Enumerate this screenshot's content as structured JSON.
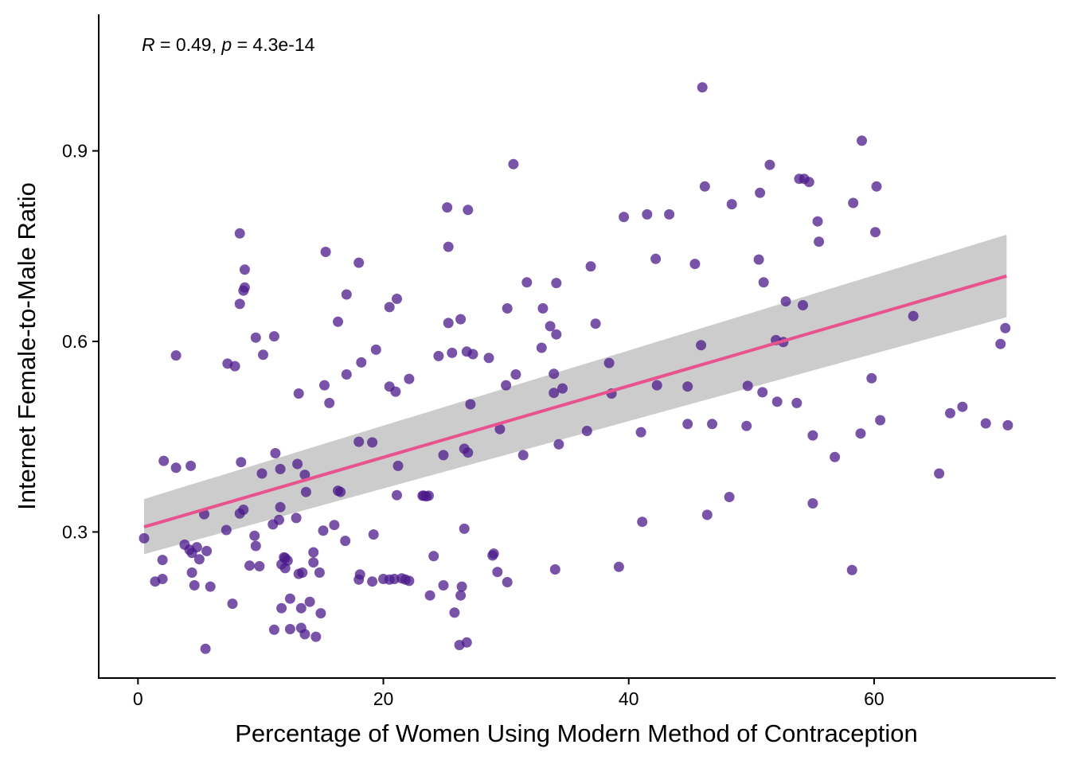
{
  "chart_data": {
    "type": "scatter",
    "xlabel": "Percentage of Women Using Modern Method of Contraception",
    "ylabel": "Internet Female-to-Male Ratio",
    "xlim": [
      -3.2,
      74.8
    ],
    "ylim": [
      0.07,
      1.115
    ],
    "x_ticks": [
      0,
      20,
      40,
      60
    ],
    "x_tick_labels": [
      "0",
      "20",
      "40",
      "60"
    ],
    "y_ticks": [
      0.3,
      0.6,
      0.9
    ],
    "y_tick_labels": [
      "0.3",
      "0.6",
      "0.9"
    ],
    "grid": false,
    "annotation": {
      "r_symbol": "R",
      "r_text": " = 0.49, ",
      "p_symbol": "p",
      "p_text": " = 4.3e-14"
    },
    "regression": {
      "x": [
        0.5,
        70.8
      ],
      "y": [
        0.308,
        0.703
      ],
      "ci_lower": [
        0.265,
        0.638
      ],
      "ci_upper": [
        0.352,
        0.768
      ]
    },
    "colors": {
      "points": "#4B1A8A",
      "regression_line": "#E8528F",
      "confidence_band": "#CCCCCC"
    },
    "points": [
      [
        0.5,
        0.29
      ],
      [
        1.4,
        0.222
      ],
      [
        2.0,
        0.256
      ],
      [
        2.0,
        0.226
      ],
      [
        2.1,
        0.412
      ],
      [
        3.1,
        0.401
      ],
      [
        3.1,
        0.578
      ],
      [
        3.8,
        0.28
      ],
      [
        4.2,
        0.272
      ],
      [
        4.3,
        0.404
      ],
      [
        4.4,
        0.236
      ],
      [
        4.4,
        0.267
      ],
      [
        4.6,
        0.216
      ],
      [
        4.8,
        0.276
      ],
      [
        5.0,
        0.257
      ],
      [
        5.4,
        0.328
      ],
      [
        5.5,
        0.116
      ],
      [
        5.6,
        0.27
      ],
      [
        5.9,
        0.214
      ],
      [
        7.2,
        0.303
      ],
      [
        7.3,
        0.565
      ],
      [
        7.7,
        0.187
      ],
      [
        7.9,
        0.561
      ],
      [
        8.3,
        0.77
      ],
      [
        8.3,
        0.659
      ],
      [
        8.4,
        0.41
      ],
      [
        8.3,
        0.329
      ],
      [
        8.6,
        0.335
      ],
      [
        8.6,
        0.68
      ],
      [
        8.7,
        0.685
      ],
      [
        8.7,
        0.713
      ],
      [
        9.1,
        0.247
      ],
      [
        9.5,
        0.294
      ],
      [
        9.6,
        0.606
      ],
      [
        9.6,
        0.278
      ],
      [
        9.9,
        0.246
      ],
      [
        10.1,
        0.392
      ],
      [
        10.2,
        0.579
      ],
      [
        11.0,
        0.312
      ],
      [
        11.1,
        0.608
      ],
      [
        11.1,
        0.146
      ],
      [
        11.2,
        0.424
      ],
      [
        11.5,
        0.319
      ],
      [
        11.6,
        0.339
      ],
      [
        11.6,
        0.399
      ],
      [
        11.7,
        0.249
      ],
      [
        11.7,
        0.18
      ],
      [
        11.9,
        0.26
      ],
      [
        12.0,
        0.259
      ],
      [
        12.0,
        0.243
      ],
      [
        12.2,
        0.255
      ],
      [
        12.4,
        0.147
      ],
      [
        12.4,
        0.195
      ],
      [
        12.9,
        0.322
      ],
      [
        13.0,
        0.407
      ],
      [
        13.1,
        0.518
      ],
      [
        13.1,
        0.234
      ],
      [
        13.3,
        0.18
      ],
      [
        13.3,
        0.149
      ],
      [
        13.4,
        0.236
      ],
      [
        13.6,
        0.139
      ],
      [
        13.6,
        0.39
      ],
      [
        13.7,
        0.363
      ],
      [
        14.0,
        0.19
      ],
      [
        14.3,
        0.268
      ],
      [
        14.3,
        0.252
      ],
      [
        14.5,
        0.135
      ],
      [
        14.8,
        0.236
      ],
      [
        14.9,
        0.172
      ],
      [
        15.1,
        0.302
      ],
      [
        15.2,
        0.531
      ],
      [
        15.3,
        0.741
      ],
      [
        15.6,
        0.503
      ],
      [
        16.0,
        0.311
      ],
      [
        16.3,
        0.631
      ],
      [
        16.3,
        0.365
      ],
      [
        16.5,
        0.363
      ],
      [
        16.9,
        0.286
      ],
      [
        17.0,
        0.674
      ],
      [
        17.0,
        0.548
      ],
      [
        18.0,
        0.724
      ],
      [
        18.0,
        0.442
      ],
      [
        18.0,
        0.225
      ],
      [
        18.1,
        0.233
      ],
      [
        18.2,
        0.567
      ],
      [
        19.1,
        0.222
      ],
      [
        19.1,
        0.441
      ],
      [
        19.2,
        0.296
      ],
      [
        19.4,
        0.587
      ],
      [
        20.0,
        0.226
      ],
      [
        20.5,
        0.654
      ],
      [
        20.5,
        0.529
      ],
      [
        20.5,
        0.225
      ],
      [
        20.9,
        0.226
      ],
      [
        21.0,
        0.521
      ],
      [
        21.1,
        0.358
      ],
      [
        21.1,
        0.667
      ],
      [
        21.2,
        0.404
      ],
      [
        21.5,
        0.227
      ],
      [
        21.8,
        0.225
      ],
      [
        22.1,
        0.223
      ],
      [
        22.1,
        0.541
      ],
      [
        23.2,
        0.357
      ],
      [
        23.3,
        0.357
      ],
      [
        23.5,
        0.356
      ],
      [
        23.7,
        0.357
      ],
      [
        23.8,
        0.2
      ],
      [
        24.1,
        0.262
      ],
      [
        24.5,
        0.577
      ],
      [
        24.9,
        0.216
      ],
      [
        24.9,
        0.421
      ],
      [
        25.2,
        0.811
      ],
      [
        25.3,
        0.749
      ],
      [
        25.3,
        0.629
      ],
      [
        25.6,
        0.582
      ],
      [
        25.8,
        0.173
      ],
      [
        26.2,
        0.122
      ],
      [
        26.3,
        0.635
      ],
      [
        26.3,
        0.2
      ],
      [
        26.4,
        0.214
      ],
      [
        26.6,
        0.431
      ],
      [
        26.6,
        0.305
      ],
      [
        26.8,
        0.584
      ],
      [
        26.8,
        0.126
      ],
      [
        26.9,
        0.425
      ],
      [
        26.9,
        0.807
      ],
      [
        27.1,
        0.501
      ],
      [
        27.3,
        0.58
      ],
      [
        28.6,
        0.574
      ],
      [
        28.9,
        0.263
      ],
      [
        29.0,
        0.266
      ],
      [
        29.3,
        0.237
      ],
      [
        29.5,
        0.462
      ],
      [
        30.0,
        0.531
      ],
      [
        30.1,
        0.652
      ],
      [
        30.1,
        0.221
      ],
      [
        30.6,
        0.879
      ],
      [
        30.8,
        0.548
      ],
      [
        31.4,
        0.421
      ],
      [
        31.7,
        0.693
      ],
      [
        32.9,
        0.59
      ],
      [
        33.0,
        0.652
      ],
      [
        33.6,
        0.624
      ],
      [
        33.9,
        0.519
      ],
      [
        33.9,
        0.549
      ],
      [
        34.0,
        0.241
      ],
      [
        34.1,
        0.611
      ],
      [
        34.1,
        0.692
      ],
      [
        34.3,
        0.438
      ],
      [
        34.6,
        0.526
      ],
      [
        36.6,
        0.459
      ],
      [
        36.9,
        0.718
      ],
      [
        37.3,
        0.628
      ],
      [
        38.4,
        0.566
      ],
      [
        38.6,
        0.518
      ],
      [
        39.2,
        0.245
      ],
      [
        39.6,
        0.796
      ],
      [
        41.0,
        0.457
      ],
      [
        41.1,
        0.316
      ],
      [
        41.5,
        0.8
      ],
      [
        42.2,
        0.73
      ],
      [
        42.3,
        0.531
      ],
      [
        43.3,
        0.8
      ],
      [
        44.8,
        0.529
      ],
      [
        44.8,
        0.47
      ],
      [
        45.4,
        0.722
      ],
      [
        45.9,
        0.594
      ],
      [
        46.0,
        1.0
      ],
      [
        46.2,
        0.844
      ],
      [
        46.4,
        0.327
      ],
      [
        46.8,
        0.47
      ],
      [
        48.2,
        0.355
      ],
      [
        48.4,
        0.816
      ],
      [
        49.6,
        0.467
      ],
      [
        49.7,
        0.53
      ],
      [
        50.6,
        0.729
      ],
      [
        50.7,
        0.834
      ],
      [
        50.9,
        0.52
      ],
      [
        51.0,
        0.693
      ],
      [
        51.5,
        0.878
      ],
      [
        52.0,
        0.602
      ],
      [
        52.1,
        0.505
      ],
      [
        52.6,
        0.599
      ],
      [
        52.8,
        0.663
      ],
      [
        53.7,
        0.503
      ],
      [
        53.9,
        0.856
      ],
      [
        54.2,
        0.657
      ],
      [
        54.3,
        0.856
      ],
      [
        54.7,
        0.851
      ],
      [
        55.0,
        0.452
      ],
      [
        55.0,
        0.345
      ],
      [
        55.4,
        0.789
      ],
      [
        55.5,
        0.757
      ],
      [
        56.8,
        0.418
      ],
      [
        58.2,
        0.24
      ],
      [
        58.3,
        0.818
      ],
      [
        58.9,
        0.455
      ],
      [
        59.0,
        0.916
      ],
      [
        59.8,
        0.542
      ],
      [
        60.1,
        0.772
      ],
      [
        60.2,
        0.844
      ],
      [
        60.5,
        0.476
      ],
      [
        63.2,
        0.64
      ],
      [
        65.3,
        0.392
      ],
      [
        66.2,
        0.487
      ],
      [
        67.2,
        0.497
      ],
      [
        69.1,
        0.471
      ],
      [
        70.3,
        0.596
      ],
      [
        70.7,
        0.621
      ],
      [
        70.9,
        0.468
      ]
    ]
  }
}
